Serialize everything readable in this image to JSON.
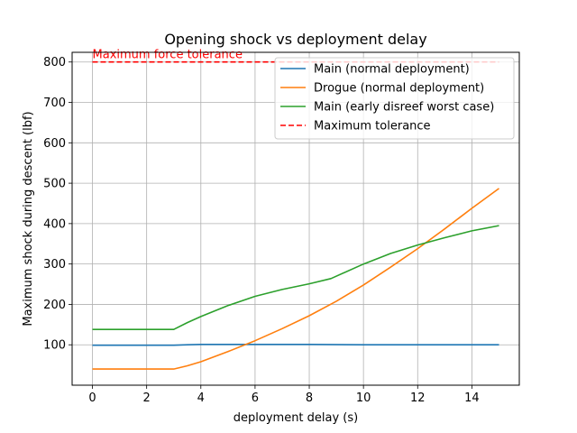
{
  "chart_data": {
    "type": "line",
    "title": "Opening shock vs deployment delay",
    "xlabel": "deployment delay (s)",
    "ylabel": "Maximum shock during descent (lbf)",
    "xlim": [
      -0.75,
      15.75
    ],
    "ylim": [
      0,
      824
    ],
    "xticks": [
      0,
      2,
      4,
      6,
      8,
      10,
      12,
      14
    ],
    "yticks": [
      100,
      200,
      300,
      400,
      500,
      600,
      700,
      800
    ],
    "grid": true,
    "legend_position": "top-right",
    "series": [
      {
        "name": "Main (normal deployment)",
        "color": "#1f77b4",
        "dash": "solid",
        "x": [
          0,
          3,
          3.5,
          4,
          6,
          8,
          10,
          12,
          14,
          15
        ],
        "y": [
          99,
          99,
          100,
          101,
          101,
          101,
          100,
          100,
          100,
          100
        ]
      },
      {
        "name": "Drogue (normal deployment)",
        "color": "#ff7f0e",
        "dash": "solid",
        "x": [
          0,
          3,
          3.5,
          4,
          5,
          6,
          7,
          8,
          9,
          10,
          11,
          12,
          13,
          14,
          15
        ],
        "y": [
          40,
          40,
          48,
          58,
          83,
          110,
          140,
          172,
          208,
          248,
          292,
          338,
          387,
          438,
          487
        ]
      },
      {
        "name": "Main (early disreef worst case)",
        "color": "#2ca02c",
        "dash": "solid",
        "x": [
          0,
          3,
          3.5,
          4,
          5,
          6,
          7,
          8,
          8.8,
          10,
          11,
          12,
          13,
          14,
          15
        ],
        "y": [
          138,
          138,
          155,
          170,
          197,
          220,
          237,
          251,
          264,
          300,
          326,
          347,
          365,
          382,
          395
        ]
      },
      {
        "name": "Maximum tolerance",
        "color": "#ff0000",
        "dash": "dashed",
        "x": [
          0,
          15
        ],
        "y": [
          800,
          800
        ]
      }
    ],
    "annotations": [
      {
        "text": "Maximum force tolerance",
        "x": 0,
        "y": 800,
        "color": "#ff0000"
      }
    ]
  }
}
